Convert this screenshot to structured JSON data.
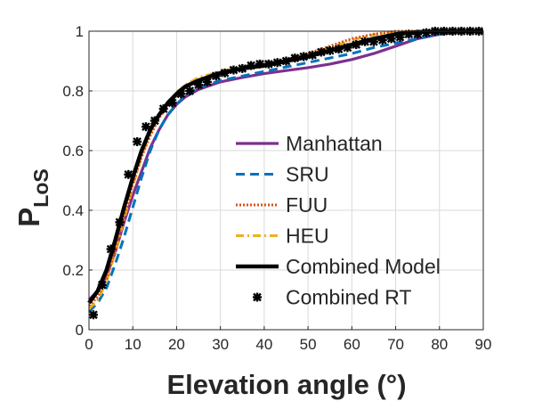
{
  "chart_data": {
    "type": "line",
    "title": "",
    "xlabel": "Elevation angle (°)",
    "ylabel_main": "P",
    "ylabel_sub": "LoS",
    "xlim": [
      0,
      90
    ],
    "ylim": [
      0,
      1
    ],
    "grid": true,
    "legend_position": "center-right",
    "x_ticks": [
      0,
      10,
      20,
      30,
      40,
      50,
      60,
      70,
      80,
      90
    ],
    "y_ticks": [
      0,
      0.2,
      0.4,
      0.6,
      0.8,
      1
    ],
    "x_tick_labels": [
      "0",
      "10",
      "20",
      "30",
      "40",
      "50",
      "60",
      "70",
      "80",
      "90"
    ],
    "y_tick_labels": [
      "0",
      "0.2",
      "0.4",
      "0.6",
      "0.8",
      "1"
    ],
    "series": [
      {
        "name": "Manhattan",
        "color": "#7E2F8E",
        "style": "solid",
        "x": [
          0,
          2,
          4,
          6,
          8,
          10,
          12,
          14,
          16,
          18,
          20,
          22,
          25,
          30,
          35,
          40,
          45,
          50,
          55,
          60,
          65,
          70,
          75,
          80,
          85,
          90
        ],
        "y": [
          0.1,
          0.13,
          0.18,
          0.26,
          0.36,
          0.45,
          0.53,
          0.61,
          0.67,
          0.72,
          0.755,
          0.78,
          0.805,
          0.83,
          0.845,
          0.858,
          0.868,
          0.878,
          0.89,
          0.905,
          0.925,
          0.95,
          0.975,
          0.99,
          0.998,
          1.0
        ]
      },
      {
        "name": "SRU",
        "color": "#0072BD",
        "style": "dashed",
        "x": [
          0,
          2,
          4,
          6,
          8,
          10,
          12,
          14,
          16,
          18,
          20,
          22,
          25,
          30,
          35,
          40,
          45,
          50,
          55,
          60,
          65,
          70,
          75,
          80,
          85,
          90
        ],
        "y": [
          0.06,
          0.09,
          0.14,
          0.22,
          0.31,
          0.41,
          0.51,
          0.6,
          0.67,
          0.72,
          0.755,
          0.785,
          0.81,
          0.835,
          0.85,
          0.865,
          0.88,
          0.895,
          0.91,
          0.925,
          0.945,
          0.96,
          0.975,
          0.99,
          0.998,
          1.0
        ]
      },
      {
        "name": "FUU",
        "color": "#D95319",
        "style": "dotted",
        "x": [
          0,
          2,
          4,
          6,
          8,
          10,
          12,
          14,
          16,
          18,
          20,
          22,
          25,
          30,
          35,
          40,
          45,
          50,
          55,
          60,
          65,
          70,
          75,
          80,
          85,
          90
        ],
        "y": [
          0.08,
          0.11,
          0.17,
          0.27,
          0.38,
          0.49,
          0.58,
          0.65,
          0.71,
          0.75,
          0.785,
          0.81,
          0.835,
          0.86,
          0.875,
          0.89,
          0.905,
          0.925,
          0.95,
          0.975,
          0.99,
          1.0,
          1.0,
          1.0,
          1.0,
          1.0
        ]
      },
      {
        "name": "HEU",
        "color": "#EDB120",
        "style": "dashdot",
        "x": [
          0,
          2,
          4,
          6,
          8,
          10,
          12,
          14,
          16,
          18,
          20,
          22,
          25,
          30,
          35,
          40,
          45,
          50,
          55,
          60,
          65,
          70,
          75,
          80,
          85,
          90
        ],
        "y": [
          0.07,
          0.1,
          0.16,
          0.26,
          0.37,
          0.48,
          0.58,
          0.66,
          0.72,
          0.76,
          0.795,
          0.82,
          0.845,
          0.865,
          0.88,
          0.89,
          0.905,
          0.92,
          0.945,
          0.97,
          0.988,
          0.997,
          1.0,
          1.0,
          1.0,
          1.0
        ]
      },
      {
        "name": "Combined Model",
        "color": "#000000",
        "style": "solid-thick",
        "x": [
          0,
          2,
          4,
          6,
          8,
          10,
          12,
          14,
          16,
          18,
          20,
          22,
          25,
          30,
          35,
          40,
          45,
          50,
          55,
          60,
          65,
          70,
          75,
          80,
          85,
          90
        ],
        "y": [
          0.09,
          0.13,
          0.2,
          0.3,
          0.41,
          0.51,
          0.6,
          0.67,
          0.72,
          0.76,
          0.79,
          0.815,
          0.835,
          0.86,
          0.875,
          0.885,
          0.9,
          0.915,
          0.935,
          0.955,
          0.975,
          0.99,
          0.997,
          1.0,
          1.0,
          1.0
        ]
      },
      {
        "name": "Combined RT",
        "color": "#000000",
        "style": "markers",
        "x": [
          1,
          3,
          5,
          7,
          9,
          11,
          13,
          15,
          17,
          19,
          21,
          23,
          25,
          27,
          29,
          31,
          33,
          35,
          37,
          39,
          41,
          43,
          45,
          47,
          49,
          51,
          53,
          55,
          57,
          59,
          61,
          63,
          65,
          67,
          69,
          71,
          73,
          75,
          77,
          79,
          81,
          83,
          85,
          87,
          89
        ],
        "y": [
          0.05,
          0.15,
          0.27,
          0.36,
          0.52,
          0.63,
          0.68,
          0.7,
          0.74,
          0.76,
          0.79,
          0.8,
          0.82,
          0.83,
          0.85,
          0.86,
          0.87,
          0.875,
          0.885,
          0.89,
          0.89,
          0.895,
          0.9,
          0.91,
          0.915,
          0.92,
          0.93,
          0.935,
          0.94,
          0.945,
          0.955,
          0.965,
          0.965,
          0.97,
          0.975,
          0.98,
          0.99,
          0.99,
          0.995,
          1.0,
          1.0,
          1.0,
          1.0,
          1.0,
          1.0
        ]
      }
    ]
  }
}
